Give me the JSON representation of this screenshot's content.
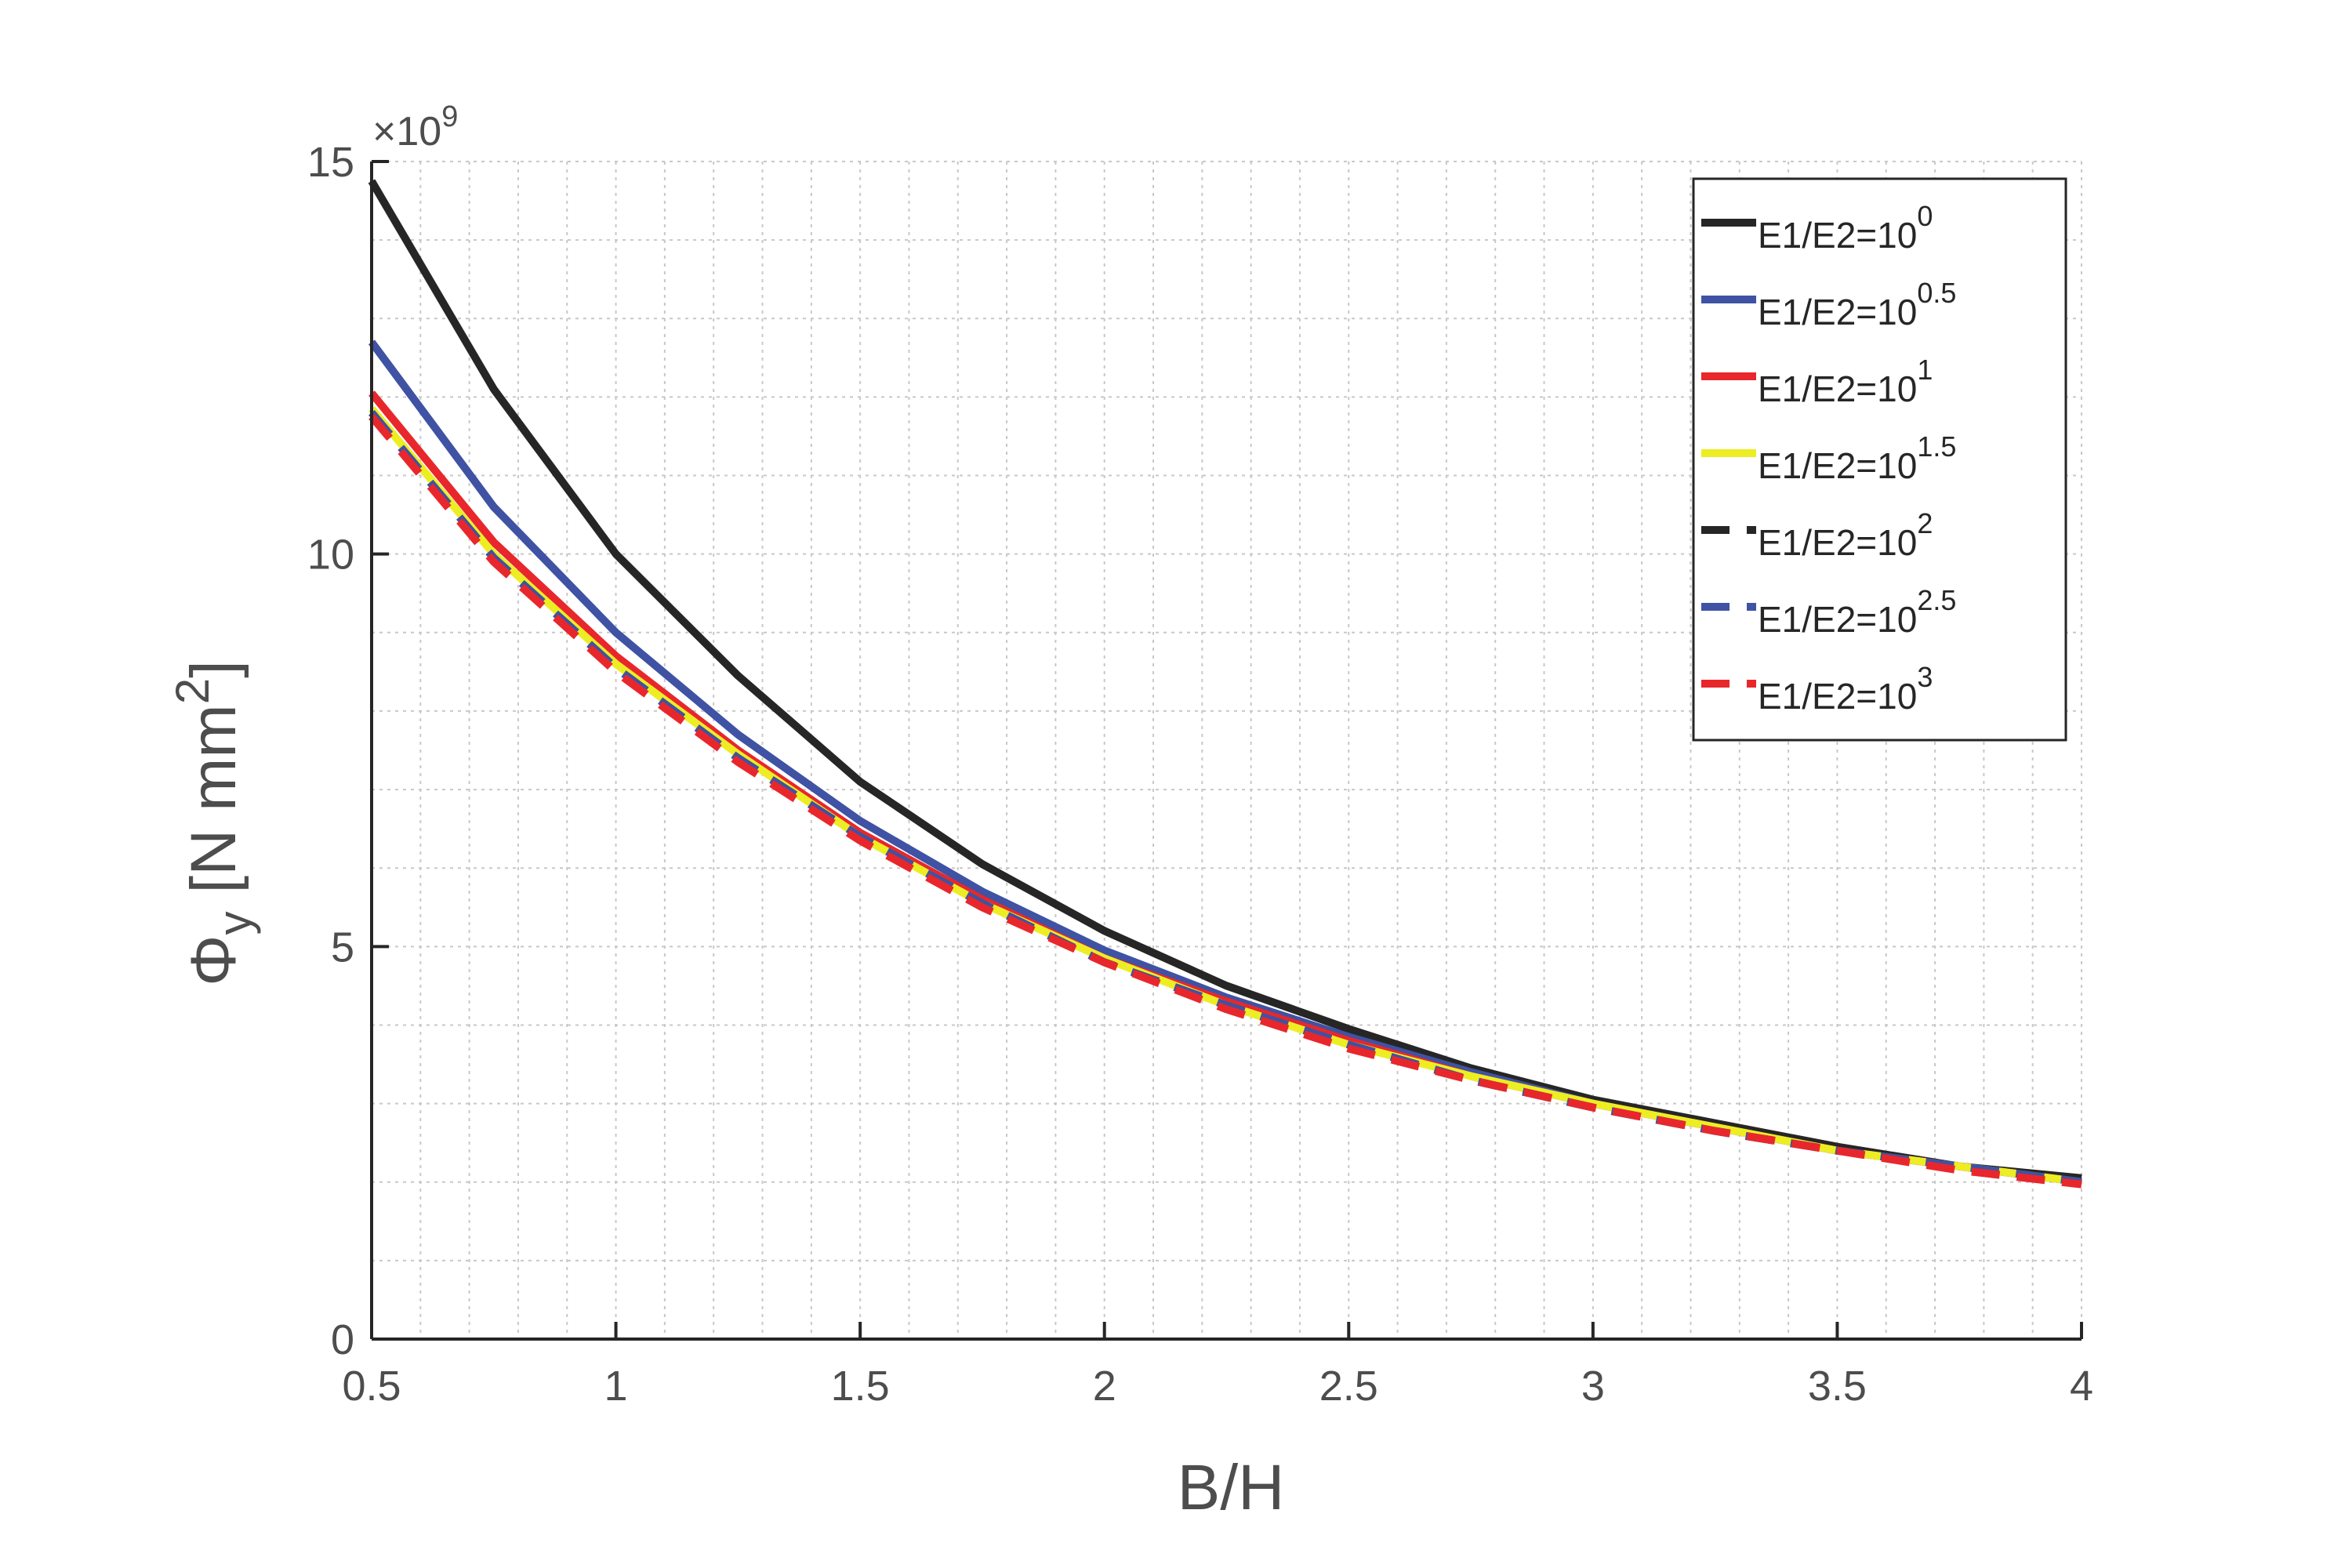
{
  "chart_data": {
    "type": "line",
    "title": "",
    "xlabel": "B/H",
    "ylabel": {
      "base": "Φ",
      "subscript": "y",
      "units_prefix": " [N mm",
      "units_superscript": "2",
      "units_suffix": "]"
    },
    "y_exponent_label": {
      "prefix": "×10",
      "power": "9"
    },
    "xlim": [
      0.5,
      4
    ],
    "ylim": [
      0,
      15
    ],
    "x_ticks": [
      0.5,
      1,
      1.5,
      2,
      2.5,
      3,
      3.5,
      4
    ],
    "x_tick_labels": [
      "0.5",
      "1",
      "1.5",
      "2",
      "2.5",
      "3",
      "3.5",
      "4"
    ],
    "y_ticks": [
      0,
      5,
      10,
      15
    ],
    "y_tick_labels": [
      "0",
      "5",
      "10",
      "15"
    ],
    "grid": true,
    "minor_grid": true,
    "legend_position": "top-right",
    "x": [
      0.5,
      0.75,
      1.0,
      1.25,
      1.5,
      1.75,
      2.0,
      2.25,
      2.5,
      2.75,
      3.0,
      3.25,
      3.5,
      3.75,
      4.0
    ],
    "series": [
      {
        "name": "E1/E2=10",
        "power": "0",
        "color": "#262626",
        "dash": "solid",
        "values": [
          14.75,
          12.1,
          10.0,
          8.45,
          7.1,
          6.05,
          5.2,
          4.5,
          3.95,
          3.45,
          3.05,
          2.75,
          2.45,
          2.2,
          2.05
        ]
      },
      {
        "name": "E1/E2=10",
        "power": "0.5",
        "color": "#3f52a3",
        "dash": "solid",
        "values": [
          12.7,
          10.6,
          9.0,
          7.7,
          6.6,
          5.7,
          4.95,
          4.35,
          3.85,
          3.4,
          3.0,
          2.7,
          2.4,
          2.2,
          2.0
        ]
      },
      {
        "name": "E1/E2=10",
        "power": "1",
        "color": "#e8272c",
        "dash": "solid",
        "values": [
          12.05,
          10.15,
          8.7,
          7.5,
          6.45,
          5.6,
          4.85,
          4.3,
          3.8,
          3.35,
          3.0,
          2.7,
          2.4,
          2.2,
          2.0
        ]
      },
      {
        "name": "E1/E2=10",
        "power": "1.5",
        "color": "#eded24",
        "dash": "solid",
        "values": [
          11.85,
          10.0,
          8.6,
          7.45,
          6.4,
          5.55,
          4.85,
          4.25,
          3.75,
          3.35,
          3.0,
          2.7,
          2.4,
          2.2,
          2.0
        ]
      },
      {
        "name": "E1/E2=10",
        "power": "2",
        "color": "#262626",
        "dash": "dashed",
        "values": [
          11.8,
          9.95,
          8.55,
          7.4,
          6.4,
          5.55,
          4.8,
          4.25,
          3.75,
          3.3,
          2.95,
          2.65,
          2.4,
          2.2,
          2.0
        ]
      },
      {
        "name": "E1/E2=10",
        "power": "2.5",
        "color": "#3f52a3",
        "dash": "dashed",
        "values": [
          11.8,
          9.95,
          8.55,
          7.4,
          6.4,
          5.55,
          4.8,
          4.25,
          3.75,
          3.3,
          2.95,
          2.65,
          2.4,
          2.2,
          2.0
        ]
      },
      {
        "name": "E1/E2=10",
        "power": "3",
        "color": "#e8272c",
        "dash": "dashed",
        "values": [
          11.75,
          9.9,
          8.5,
          7.35,
          6.35,
          5.5,
          4.8,
          4.2,
          3.7,
          3.3,
          2.95,
          2.65,
          2.4,
          2.15,
          1.97
        ]
      }
    ]
  }
}
